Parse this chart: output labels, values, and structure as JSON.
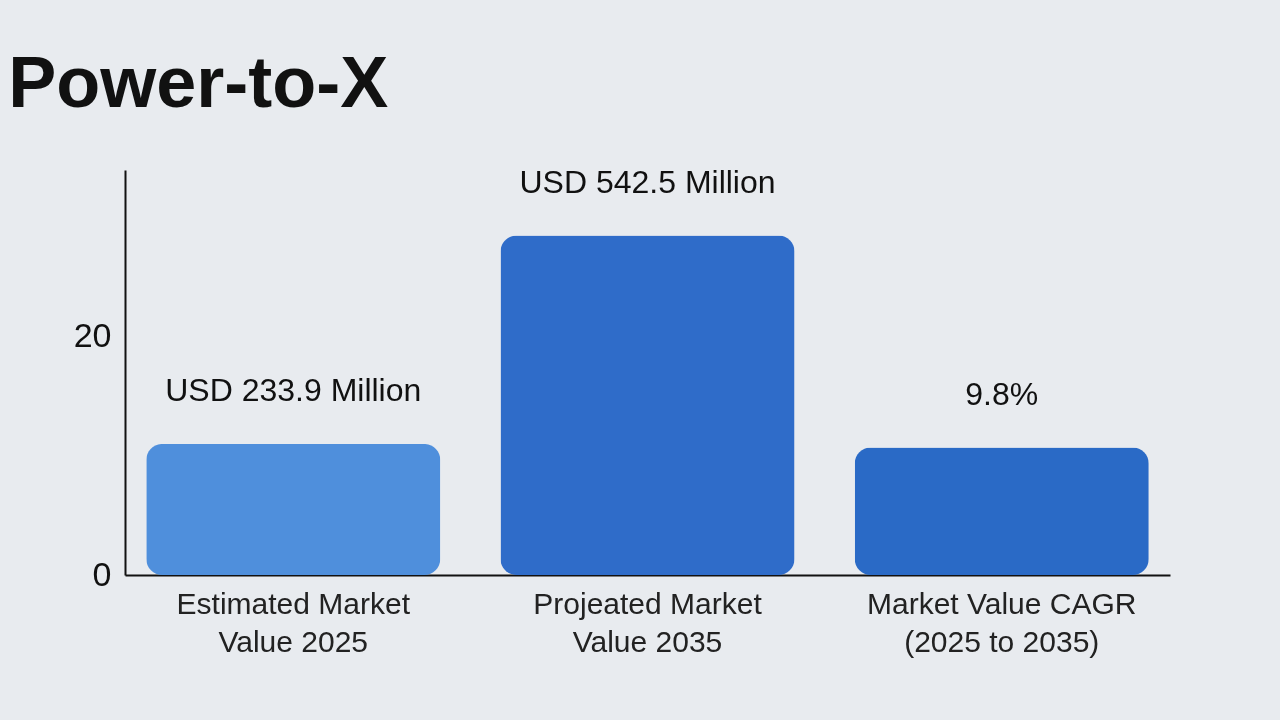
{
  "chart_data": {
    "type": "bar",
    "title": "Power-to-X",
    "categories": [
      "Estimated Market Value 2025",
      "Projeated Market Value 2035",
      "Market Value CAGR (2025 to 2035)"
    ],
    "values": [
      11,
      28.5,
      10.7
    ],
    "annotations": [
      {
        "text": "USD 233.9 Million",
        "x": "Estimated Market Value 2025",
        "y": 11
      },
      {
        "text": "USD 542.5 Million",
        "x": "Projeated Market Value 2035",
        "y": 28.5
      },
      {
        "text": "9.8%",
        "x": "Market Value CAGR (2025 to 2035)",
        "y": 10.7
      }
    ],
    "colors": [
      "#4f8fdc",
      "#2f6cc9",
      "#2a6ac6"
    ],
    "ylim": [
      0,
      34
    ],
    "yticks": [
      0,
      20
    ],
    "grid": false
  }
}
